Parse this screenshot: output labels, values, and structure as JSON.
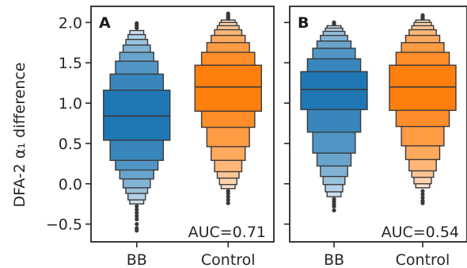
{
  "chart_data": [
    {
      "type": "boxen",
      "panel_label": "A",
      "categories": [
        "BB",
        "Control"
      ],
      "ylabel": "DFA-2 α₁ difference",
      "ylim": [
        -0.72,
        2.2
      ],
      "yticks": [
        "2.0",
        "1.5",
        "1.0",
        "0.5",
        "0.0",
        "−0.5"
      ],
      "ytick_values": [
        2.0,
        1.5,
        1.0,
        0.5,
        0.0,
        -0.5
      ],
      "annotation": "AUC=0.71",
      "series": [
        {
          "category": "BB",
          "color": "#1f77b4",
          "median": 0.84,
          "levels": [
            {
              "low": 0.54,
              "high": 1.16
            },
            {
              "low": 0.29,
              "high": 1.36
            },
            {
              "low": 0.17,
              "high": 1.52
            },
            {
              "low": 0.06,
              "high": 1.63
            },
            {
              "low": -0.05,
              "high": 1.72
            },
            {
              "low": -0.12,
              "high": 1.79
            },
            {
              "low": -0.2,
              "high": 1.85
            },
            {
              "low": -0.25,
              "high": 1.9
            }
          ],
          "outliers": [
            1.93,
            1.95,
            1.97,
            1.99,
            -0.28,
            -0.32,
            -0.36,
            -0.4,
            -0.44,
            -0.5,
            -0.55,
            -0.58
          ]
        },
        {
          "category": "Control",
          "color": "#ff7f0e",
          "median": 1.2,
          "levels": [
            {
              "low": 0.9,
              "high": 1.47
            },
            {
              "low": 0.7,
              "high": 1.63
            },
            {
              "low": 0.46,
              "high": 1.75
            },
            {
              "low": 0.29,
              "high": 1.84
            },
            {
              "low": 0.15,
              "high": 1.91
            },
            {
              "low": 0.07,
              "high": 1.96
            },
            {
              "low": -0.01,
              "high": 2.0
            },
            {
              "low": -0.06,
              "high": 2.03
            }
          ],
          "outliers": [
            2.05,
            2.07,
            2.09,
            2.11,
            -0.09,
            -0.12,
            -0.16,
            -0.2,
            -0.24
          ]
        }
      ]
    },
    {
      "type": "boxen",
      "panel_label": "B",
      "categories": [
        "BB",
        "Control"
      ],
      "ylabel": "",
      "ylim": [
        -0.72,
        2.2
      ],
      "yticks": [],
      "ytick_values": [
        2.0,
        1.5,
        1.0,
        0.5,
        0.0,
        -0.5
      ],
      "annotation": "AUC=0.54",
      "series": [
        {
          "category": "BB",
          "color": "#1f77b4",
          "median": 1.17,
          "levels": [
            {
              "low": 0.92,
              "high": 1.39
            },
            {
              "low": 0.64,
              "high": 1.55
            },
            {
              "low": 0.38,
              "high": 1.68
            },
            {
              "low": 0.22,
              "high": 1.77
            },
            {
              "low": 0.09,
              "high": 1.84
            },
            {
              "low": -0.01,
              "high": 1.89
            },
            {
              "low": -0.1,
              "high": 1.93
            },
            {
              "low": -0.16,
              "high": 1.96
            }
          ],
          "outliers": [
            1.98,
            2.0,
            -0.19,
            -0.22,
            -0.25,
            -0.28,
            -0.33
          ]
        },
        {
          "category": "Control",
          "color": "#ff7f0e",
          "median": 1.2,
          "levels": [
            {
              "low": 0.91,
              "high": 1.47
            },
            {
              "low": 0.71,
              "high": 1.63
            },
            {
              "low": 0.47,
              "high": 1.75
            },
            {
              "low": 0.3,
              "high": 1.84
            },
            {
              "low": 0.16,
              "high": 1.91
            },
            {
              "low": 0.08,
              "high": 1.96
            },
            {
              "low": 0.0,
              "high": 2.0
            },
            {
              "low": -0.05,
              "high": 2.03
            }
          ],
          "outliers": [
            2.05,
            2.07,
            2.09,
            -0.09,
            -0.13,
            -0.17,
            -0.21,
            -0.24
          ]
        }
      ]
    }
  ]
}
